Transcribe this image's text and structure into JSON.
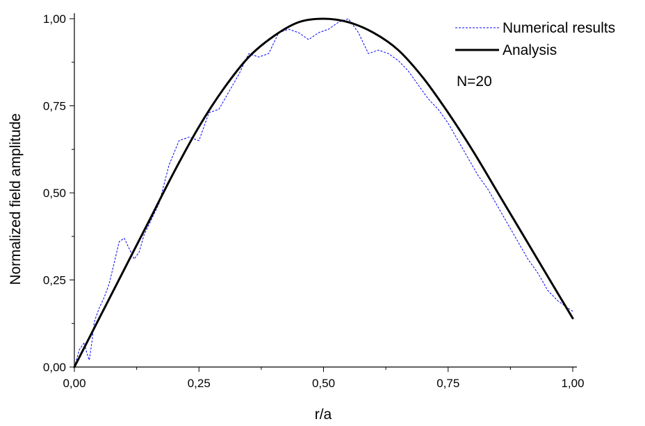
{
  "chart_data": {
    "type": "line",
    "xlabel": "r/a",
    "ylabel": "Normalized field amplitude",
    "xlim": [
      0,
      1
    ],
    "ylim": [
      0,
      1
    ],
    "x_ticks": [
      0,
      0.25,
      0.5,
      0.75,
      1.0
    ],
    "y_ticks": [
      0,
      0.25,
      0.5,
      0.75,
      1.0
    ],
    "x_tick_labels": [
      "0,00",
      "0,25",
      "0,50",
      "0,75",
      "1,00"
    ],
    "y_tick_labels": [
      "0,00",
      "0,25",
      "0,50",
      "0,75",
      "1,00"
    ],
    "grid": false,
    "legend_position": "top-right",
    "annotation": "N=20",
    "series": [
      {
        "name": "Numerical results",
        "style": "dashed",
        "color": "#0000ff",
        "x": [
          0.0,
          0.01,
          0.02,
          0.025,
          0.03,
          0.035,
          0.04,
          0.05,
          0.06,
          0.07,
          0.08,
          0.09,
          0.1,
          0.11,
          0.12,
          0.13,
          0.14,
          0.15,
          0.17,
          0.19,
          0.21,
          0.23,
          0.25,
          0.27,
          0.29,
          0.31,
          0.33,
          0.35,
          0.37,
          0.39,
          0.41,
          0.43,
          0.45,
          0.47,
          0.49,
          0.51,
          0.53,
          0.55,
          0.57,
          0.59,
          0.61,
          0.63,
          0.65,
          0.67,
          0.69,
          0.71,
          0.73,
          0.75,
          0.77,
          0.79,
          0.81,
          0.83,
          0.85,
          0.87,
          0.89,
          0.91,
          0.93,
          0.95,
          0.97,
          1.0
        ],
        "y": [
          0.0,
          0.05,
          0.07,
          0.04,
          0.02,
          0.07,
          0.13,
          0.17,
          0.2,
          0.24,
          0.3,
          0.36,
          0.37,
          0.34,
          0.31,
          0.33,
          0.38,
          0.41,
          0.47,
          0.58,
          0.65,
          0.66,
          0.65,
          0.73,
          0.74,
          0.79,
          0.84,
          0.9,
          0.89,
          0.9,
          0.96,
          0.97,
          0.96,
          0.94,
          0.96,
          0.97,
          0.99,
          1.0,
          0.96,
          0.9,
          0.91,
          0.9,
          0.88,
          0.85,
          0.81,
          0.77,
          0.74,
          0.7,
          0.65,
          0.6,
          0.55,
          0.51,
          0.46,
          0.41,
          0.36,
          0.31,
          0.27,
          0.22,
          0.19,
          0.16
        ]
      },
      {
        "name": "Analysis",
        "style": "solid",
        "color": "#000000",
        "function": "sin(pi*x)^(0.9)*1.0 approx, ending at 0.14",
        "x": [
          0.0,
          0.05,
          0.1,
          0.15,
          0.2,
          0.25,
          0.3,
          0.35,
          0.4,
          0.45,
          0.5,
          0.55,
          0.6,
          0.65,
          0.7,
          0.75,
          0.8,
          0.85,
          0.9,
          0.95,
          1.0
        ],
        "y": [
          0.0,
          0.14,
          0.28,
          0.42,
          0.56,
          0.69,
          0.8,
          0.89,
          0.95,
          0.99,
          1.0,
          0.99,
          0.96,
          0.91,
          0.83,
          0.73,
          0.62,
          0.5,
          0.38,
          0.26,
          0.14
        ]
      }
    ]
  }
}
